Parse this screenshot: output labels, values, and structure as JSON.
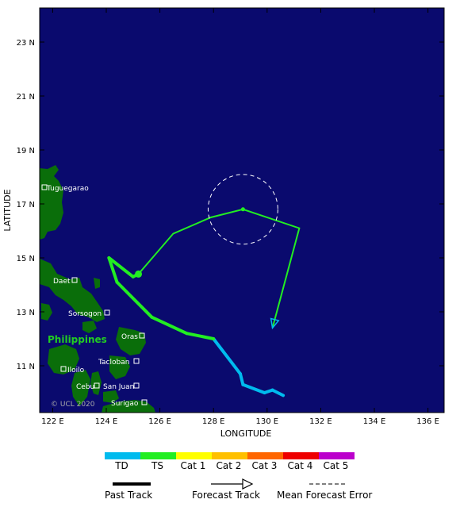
{
  "map": {
    "lon_ticks": [
      "122 E",
      "124 E",
      "126 E",
      "128 E",
      "130 E",
      "132 E",
      "134 E",
      "136 E"
    ],
    "lat_ticks": [
      "23 N",
      "21 N",
      "19 N",
      "17 N",
      "15 N",
      "13 N",
      "11 N"
    ],
    "xlabel": "LONGITUDE",
    "ylabel": "LATITUDE",
    "country_label": "Philippines",
    "copyright": "© UCL 2020",
    "cities": [
      "Tuguegarao",
      "Daet",
      "Sorsogon",
      "Iloilo",
      "Tacloban",
      "Cebu",
      "San Juan",
      "Surigao",
      "Oras"
    ],
    "colors": {
      "ocean": "#0a0a6e",
      "land": "#0a6e0a",
      "TD": "#00bbee",
      "TS": "#22ee22"
    },
    "past_track": [
      {
        "lon": 130.6,
        "lat": 9.9,
        "cat": "TD"
      },
      {
        "lon": 130.2,
        "lat": 10.1,
        "cat": "TD"
      },
      {
        "lon": 129.9,
        "lat": 10.0,
        "cat": "TD"
      },
      {
        "lon": 129.1,
        "lat": 10.3,
        "cat": "TD"
      },
      {
        "lon": 129.0,
        "lat": 10.7,
        "cat": "TD"
      },
      {
        "lon": 128.0,
        "lat": 12.0,
        "cat": "TD"
      },
      {
        "lon": 127.0,
        "lat": 12.2,
        "cat": "TS"
      },
      {
        "lon": 125.7,
        "lat": 12.8,
        "cat": "TS"
      },
      {
        "lon": 124.4,
        "lat": 14.1,
        "cat": "TS"
      },
      {
        "lon": 124.1,
        "lat": 15.0,
        "cat": "TS"
      },
      {
        "lon": 125.0,
        "lat": 14.3,
        "cat": "TS"
      },
      {
        "lon": 125.2,
        "lat": 14.4,
        "cat": "TS"
      }
    ],
    "forecast_track": [
      {
        "lon": 125.2,
        "lat": 14.4
      },
      {
        "lon": 126.5,
        "lat": 15.9
      },
      {
        "lon": 127.9,
        "lat": 16.5
      },
      {
        "lon": 129.1,
        "lat": 16.8
      },
      {
        "lon": 131.2,
        "lat": 16.1
      },
      {
        "lon": 130.2,
        "lat": 12.4
      }
    ],
    "error_circle": {
      "lon": 129.1,
      "lat": 16.8,
      "radius_deg": 1.3
    }
  },
  "legend": {
    "categories": [
      {
        "label": "TD",
        "color": "#00bbee"
      },
      {
        "label": "TS",
        "color": "#22ee22"
      },
      {
        "label": "Cat 1",
        "color": "#ffff00"
      },
      {
        "label": "Cat 2",
        "color": "#ffc000"
      },
      {
        "label": "Cat 3",
        "color": "#ff6600"
      },
      {
        "label": "Cat 4",
        "color": "#ee0000"
      },
      {
        "label": "Cat 5",
        "color": "#bb00cc"
      }
    ],
    "past_track": "Past Track",
    "forecast_track": "Forecast Track",
    "mean_error": "Mean Forecast Error"
  }
}
